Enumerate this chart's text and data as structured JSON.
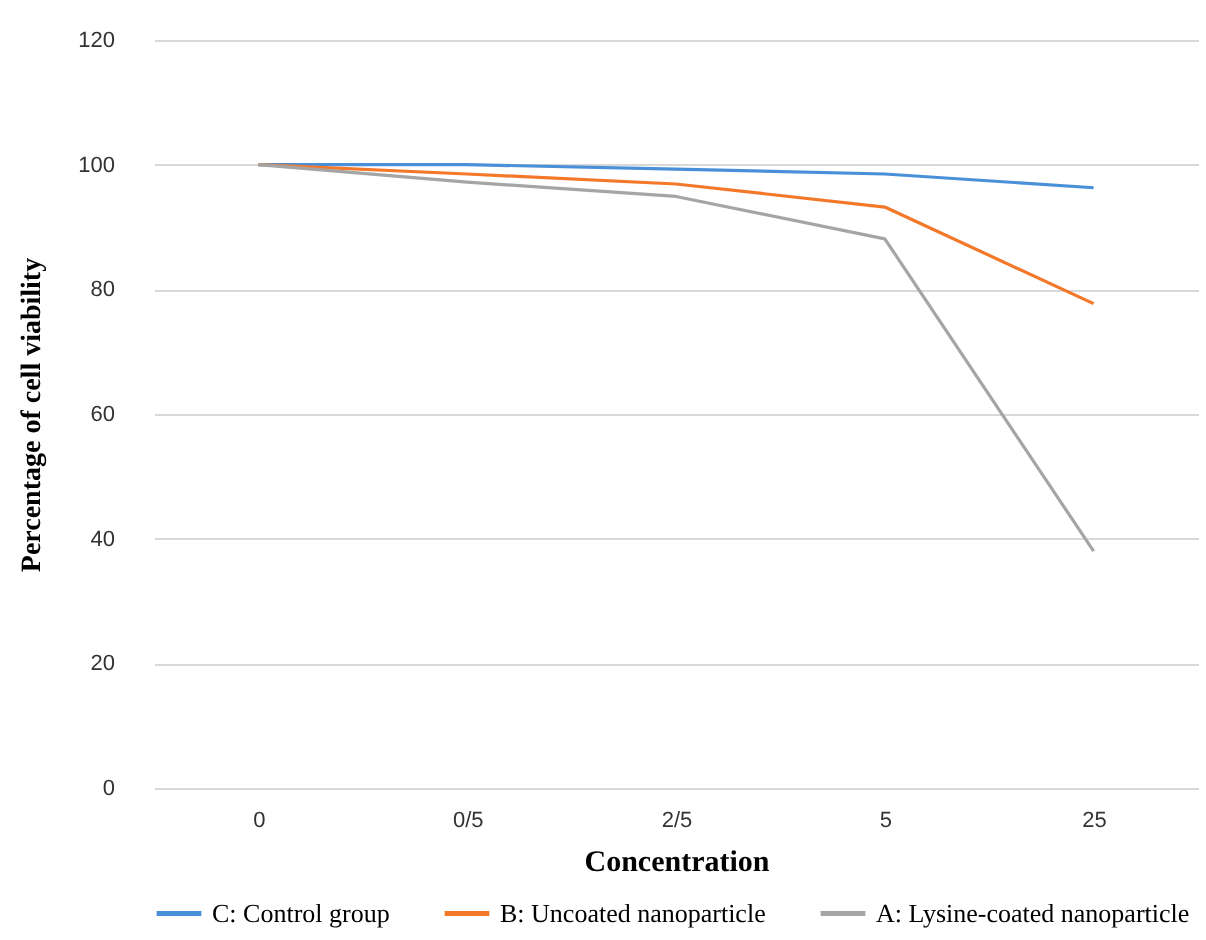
{
  "chart_data": {
    "type": "line",
    "xlabel": "Concentration",
    "ylabel": "Percentage of cell viability",
    "categories": [
      "0",
      "0/5",
      "2/5",
      "5",
      "25"
    ],
    "series": [
      {
        "name": "C: Control group",
        "color": "#4a90d9",
        "values": [
          100,
          100,
          99.3,
          98.5,
          96.3
        ]
      },
      {
        "name": "B: Uncoated nanoparticle",
        "color": "#f4782a",
        "values": [
          100,
          98.5,
          96.9,
          93.2,
          77.7
        ]
      },
      {
        "name": "A: Lysine-coated nanoparticle",
        "color": "#a5a5a5",
        "values": [
          100,
          97.2,
          94.9,
          88.1,
          38
        ]
      }
    ],
    "ylim": [
      0,
      120
    ],
    "yticks": [
      0,
      20,
      40,
      60,
      80,
      100,
      120
    ],
    "grid": "y",
    "legend": "bottom",
    "marker": "none",
    "line_style": "solid"
  }
}
